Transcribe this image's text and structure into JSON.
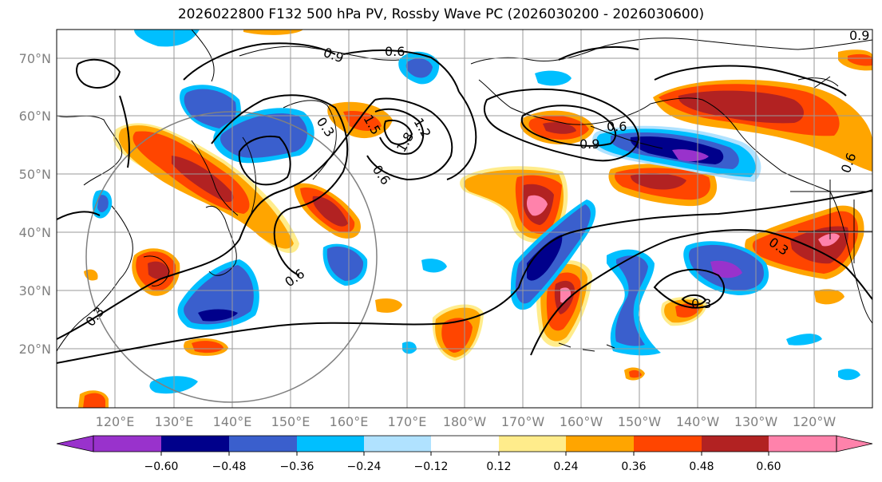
{
  "title": "2026022800 F132 500 hPa PV, Rossby Wave PC (2026030200 - 2026030600)",
  "lat_ticks": [
    "70°N",
    "60°N",
    "50°N",
    "40°N",
    "30°N",
    "20°N"
  ],
  "lon_ticks": [
    "120°E",
    "130°E",
    "140°E",
    "150°E",
    "160°E",
    "170°E",
    "180°W",
    "170°W",
    "160°W",
    "150°W",
    "140°W",
    "130°W",
    "120°W"
  ],
  "contour_labels": [
    "0.9",
    "0.6",
    "1.5",
    "1.2",
    "1.8",
    "0.9",
    "0.6",
    "0.3",
    "0.6",
    "0.3",
    "0.3",
    "0.3",
    "0.6",
    "0.9",
    "0.6"
  ],
  "colorbar": {
    "ticks": [
      "−0.60",
      "−0.48",
      "−0.36",
      "−0.24",
      "−0.12",
      "0.12",
      "0.24",
      "0.36",
      "0.48",
      "0.60"
    ],
    "colors": [
      "#9932CC",
      "#00008B",
      "#3A5FCD",
      "#00BFFF",
      "#B0E2FF",
      "#FFFFFF",
      "#FFEC8B",
      "#FFA500",
      "#FF4500",
      "#B22222",
      "#FF82AB"
    ]
  },
  "colors": {
    "pink": "#FF82AB",
    "darkred": "#B22222",
    "red": "#FF4500",
    "orange": "#FFA500",
    "yellow": "#FFEC8B",
    "lightblue": "#B0E2FF",
    "skyblue": "#00BFFF",
    "blue": "#3A5FCD",
    "navy": "#00008B",
    "purple": "#9932CC"
  }
}
